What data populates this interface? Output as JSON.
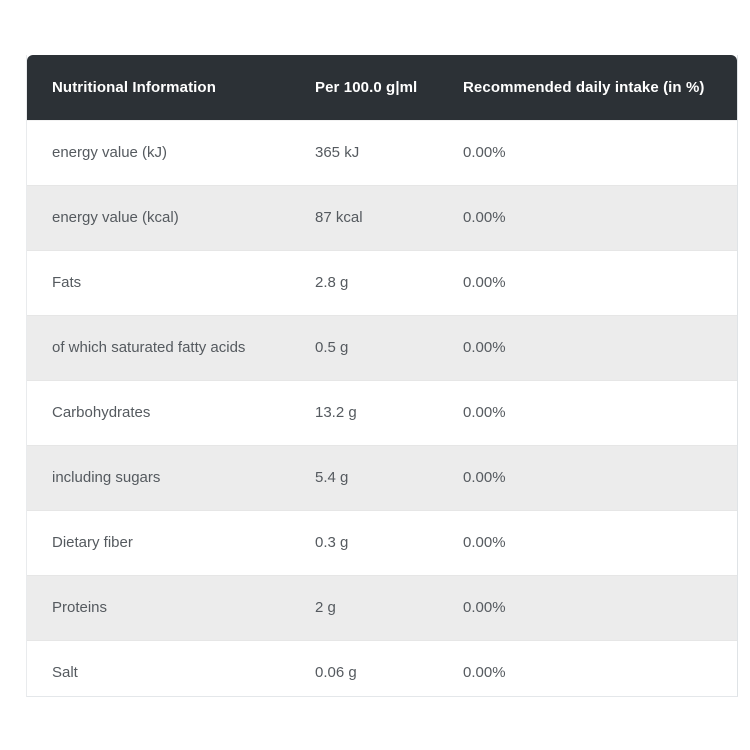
{
  "page": {
    "background_color": "#ffffff"
  },
  "table": {
    "header": {
      "col_nutrient": "Nutritional Information",
      "col_per": "Per 100.0 g|ml",
      "col_rdi": "Recommended daily intake (in %)",
      "bg_color": "#2c3136",
      "text_color": "#ffffff"
    },
    "rows": [
      {
        "nutrient": "energy value (kJ)",
        "per": "365 kJ",
        "rdi": "0.00%"
      },
      {
        "nutrient": "energy value (kcal)",
        "per": "87 kcal",
        "rdi": "0.00%"
      },
      {
        "nutrient": "Fats",
        "per": "2.8 g",
        "rdi": "0.00%"
      },
      {
        "nutrient": "of which saturated fatty acids",
        "per": "0.5 g",
        "rdi": "0.00%"
      },
      {
        "nutrient": "Carbohydrates",
        "per": "13.2 g",
        "rdi": "0.00%"
      },
      {
        "nutrient": "including sugars",
        "per": "5.4 g",
        "rdi": "0.00%"
      },
      {
        "nutrient": "Dietary fiber",
        "per": "0.3 g",
        "rdi": "0.00%"
      },
      {
        "nutrient": "Proteins",
        "per": "2 g",
        "rdi": "0.00%"
      },
      {
        "nutrient": "Salt",
        "per": "0.06 g",
        "rdi": "0.00%"
      }
    ],
    "row_alt_bg_color": "#ececec",
    "row_text_color": "#555a5f"
  }
}
